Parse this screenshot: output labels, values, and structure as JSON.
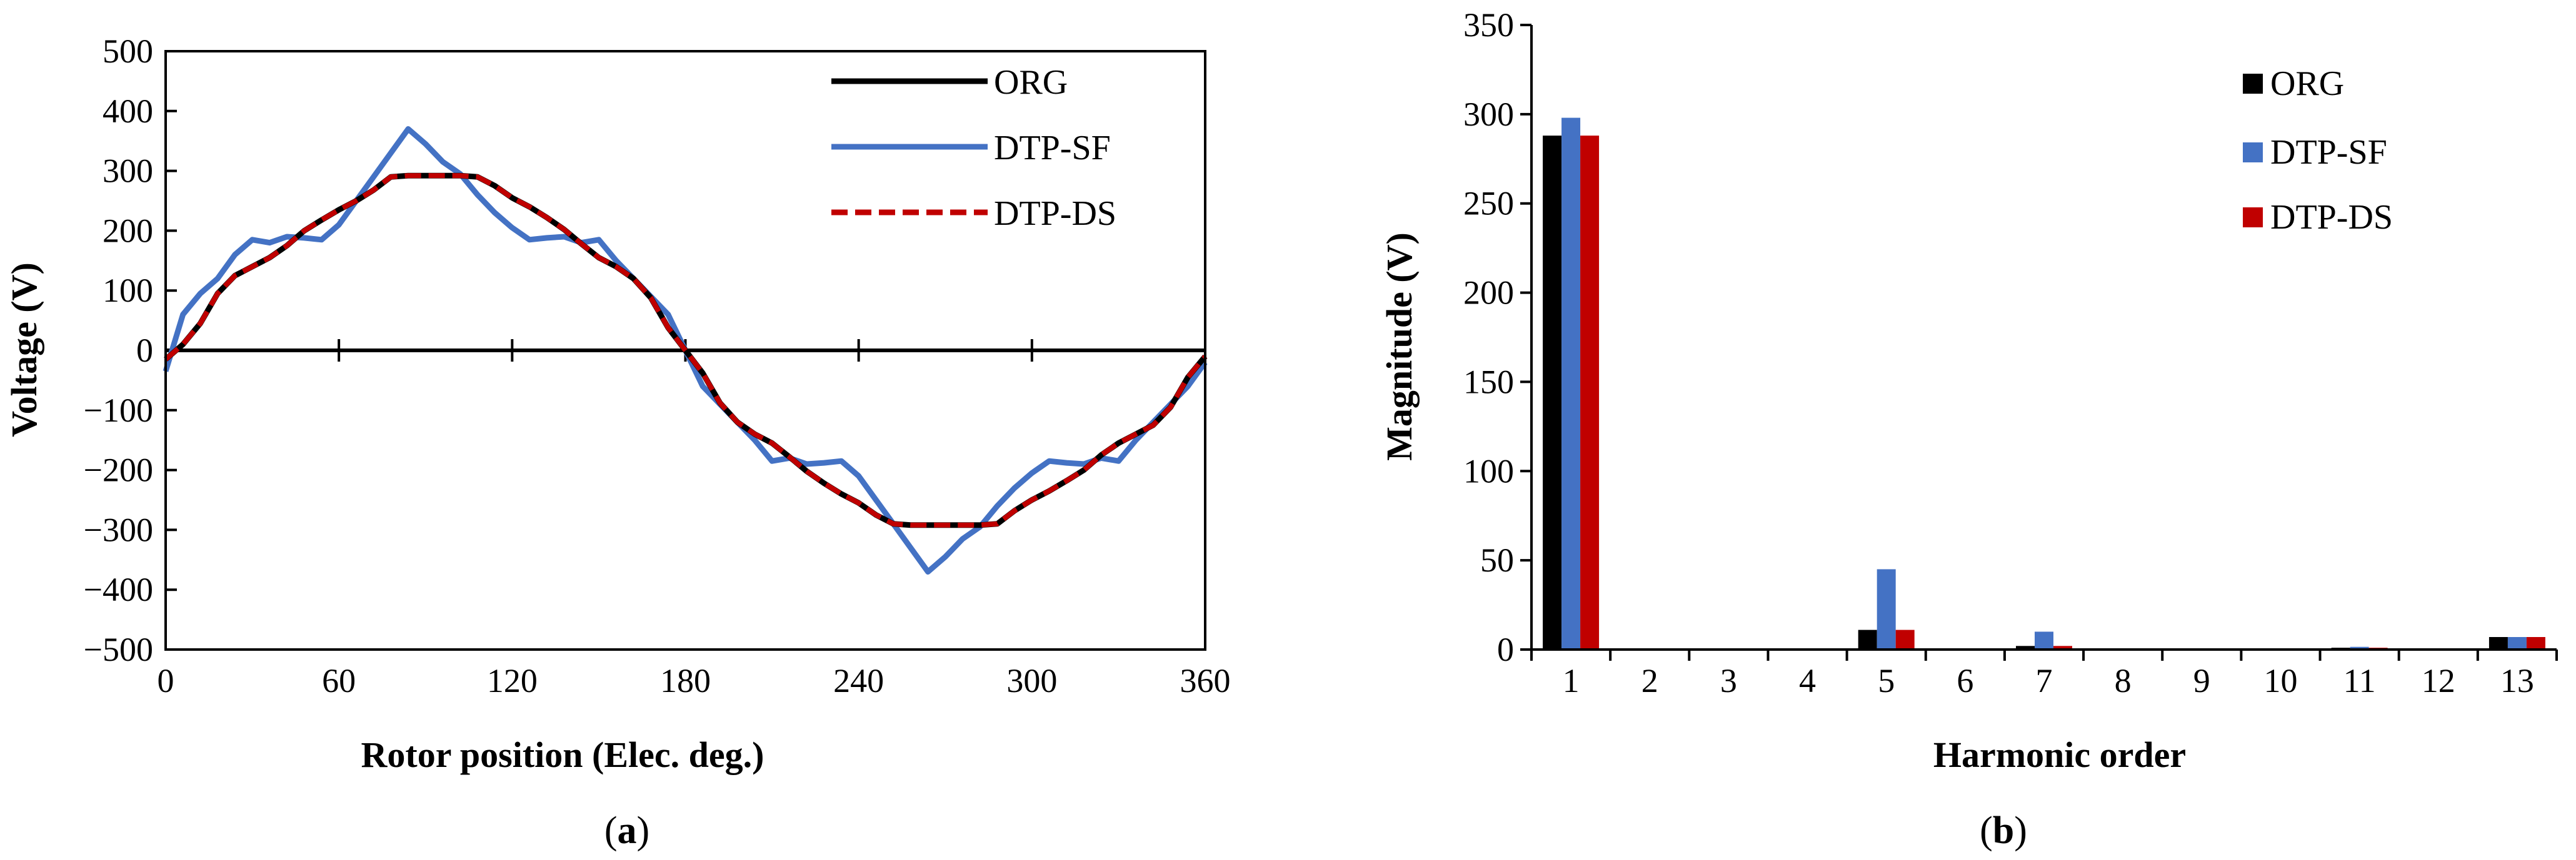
{
  "chart_data": [
    {
      "type": "line",
      "panel_label": "a",
      "xlabel": "Rotor position (Elec. deg.)",
      "ylabel": "Voltage (V)",
      "xlim": [
        0,
        360
      ],
      "ylim": [
        -500,
        500
      ],
      "xticks": [
        "0",
        "60",
        "120",
        "180",
        "240",
        "300",
        "360"
      ],
      "yticks": [
        "500",
        "400",
        "300",
        "200",
        "100",
        "0",
        "−100",
        "−200",
        "−300",
        "−400",
        "−500"
      ],
      "legend_position": "top-right",
      "series": [
        {
          "name": "ORG",
          "color": "#000000",
          "dash": "solid",
          "x": [
            0,
            6,
            12,
            18,
            24,
            30,
            36,
            42,
            48,
            54,
            60,
            66,
            72,
            78,
            84,
            90,
            96,
            102,
            108,
            114,
            120,
            126,
            132,
            138,
            144,
            150,
            156,
            162,
            168,
            174,
            180,
            186,
            192,
            198,
            204,
            210,
            216,
            222,
            228,
            234,
            240,
            246,
            252,
            258,
            264,
            270,
            276,
            282,
            288,
            294,
            300,
            306,
            312,
            318,
            324,
            330,
            336,
            342,
            348,
            354,
            360
          ],
          "y": [
            -15,
            10,
            45,
            95,
            125,
            140,
            155,
            175,
            200,
            218,
            235,
            250,
            268,
            290,
            292,
            292,
            292,
            292,
            290,
            275,
            255,
            240,
            222,
            202,
            178,
            155,
            140,
            120,
            88,
            38,
            0,
            -38,
            -88,
            -120,
            -140,
            -155,
            -178,
            -202,
            -222,
            -240,
            -255,
            -275,
            -290,
            -292,
            -292,
            -292,
            -292,
            -292,
            -290,
            -268,
            -250,
            -235,
            -218,
            -200,
            -175,
            -155,
            -140,
            -125,
            -95,
            -45,
            -10
          ]
        },
        {
          "name": "DTP-SF",
          "color": "#4472C4",
          "dash": "solid",
          "x": [
            0,
            6,
            12,
            18,
            24,
            30,
            36,
            42,
            48,
            54,
            60,
            66,
            72,
            78,
            84,
            90,
            96,
            102,
            108,
            114,
            120,
            126,
            132,
            138,
            144,
            150,
            156,
            162,
            168,
            174,
            180,
            186,
            192,
            198,
            204,
            210,
            216,
            222,
            228,
            234,
            240,
            246,
            252,
            258,
            264,
            270,
            276,
            282,
            288,
            294,
            300,
            306,
            312,
            318,
            324,
            330,
            336,
            342,
            348,
            354,
            360
          ],
          "y": [
            -35,
            60,
            95,
            120,
            160,
            185,
            180,
            190,
            188,
            185,
            210,
            250,
            290,
            330,
            370,
            345,
            315,
            295,
            260,
            230,
            205,
            185,
            188,
            190,
            180,
            185,
            150,
            120,
            90,
            60,
            0,
            -60,
            -90,
            -120,
            -150,
            -185,
            -180,
            -190,
            -188,
            -185,
            -210,
            -250,
            -290,
            -330,
            -370,
            -345,
            -315,
            -295,
            -260,
            -230,
            -205,
            -185,
            -188,
            -190,
            -180,
            -185,
            -150,
            -120,
            -90,
            -60,
            -20
          ]
        },
        {
          "name": "DTP-DS",
          "color": "#C00000",
          "dash": "dashed",
          "x": [
            0,
            6,
            12,
            18,
            24,
            30,
            36,
            42,
            48,
            54,
            60,
            66,
            72,
            78,
            84,
            90,
            96,
            102,
            108,
            114,
            120,
            126,
            132,
            138,
            144,
            150,
            156,
            162,
            168,
            174,
            180,
            186,
            192,
            198,
            204,
            210,
            216,
            222,
            228,
            234,
            240,
            246,
            252,
            258,
            264,
            270,
            276,
            282,
            288,
            294,
            300,
            306,
            312,
            318,
            324,
            330,
            336,
            342,
            348,
            354,
            360
          ],
          "y": [
            -15,
            10,
            45,
            95,
            125,
            140,
            155,
            175,
            200,
            218,
            235,
            250,
            268,
            290,
            292,
            292,
            292,
            292,
            290,
            275,
            255,
            240,
            222,
            202,
            178,
            155,
            140,
            120,
            88,
            38,
            0,
            -38,
            -88,
            -120,
            -140,
            -155,
            -178,
            -202,
            -222,
            -240,
            -255,
            -275,
            -290,
            -292,
            -292,
            -292,
            -292,
            -292,
            -290,
            -268,
            -250,
            -235,
            -218,
            -200,
            -175,
            -155,
            -140,
            -125,
            -95,
            -45,
            -10
          ]
        }
      ]
    },
    {
      "type": "bar",
      "panel_label": "b",
      "xlabel": "Harmonic order",
      "ylabel": "Magnitude (V)",
      "ylim": [
        0,
        350
      ],
      "yticks": [
        "0",
        "50",
        "100",
        "150",
        "200",
        "250",
        "300",
        "350"
      ],
      "categories": [
        "1",
        "2",
        "3",
        "4",
        "5",
        "6",
        "7",
        "8",
        "9",
        "10",
        "11",
        "12",
        "13"
      ],
      "legend_position": "top-right",
      "series": [
        {
          "name": "ORG",
          "color": "#000000",
          "values": [
            288,
            0,
            0,
            0,
            11,
            0,
            2,
            0,
            0,
            0,
            1,
            0,
            7
          ]
        },
        {
          "name": "DTP-SF",
          "color": "#4472C4",
          "values": [
            298,
            0,
            0,
            0,
            45,
            0,
            10,
            0,
            0,
            0,
            1.5,
            0,
            7
          ]
        },
        {
          "name": "DTP-DS",
          "color": "#C00000",
          "values": [
            288,
            0,
            0,
            0,
            11,
            0,
            2,
            0,
            0,
            0,
            1,
            0,
            7
          ]
        }
      ]
    }
  ]
}
